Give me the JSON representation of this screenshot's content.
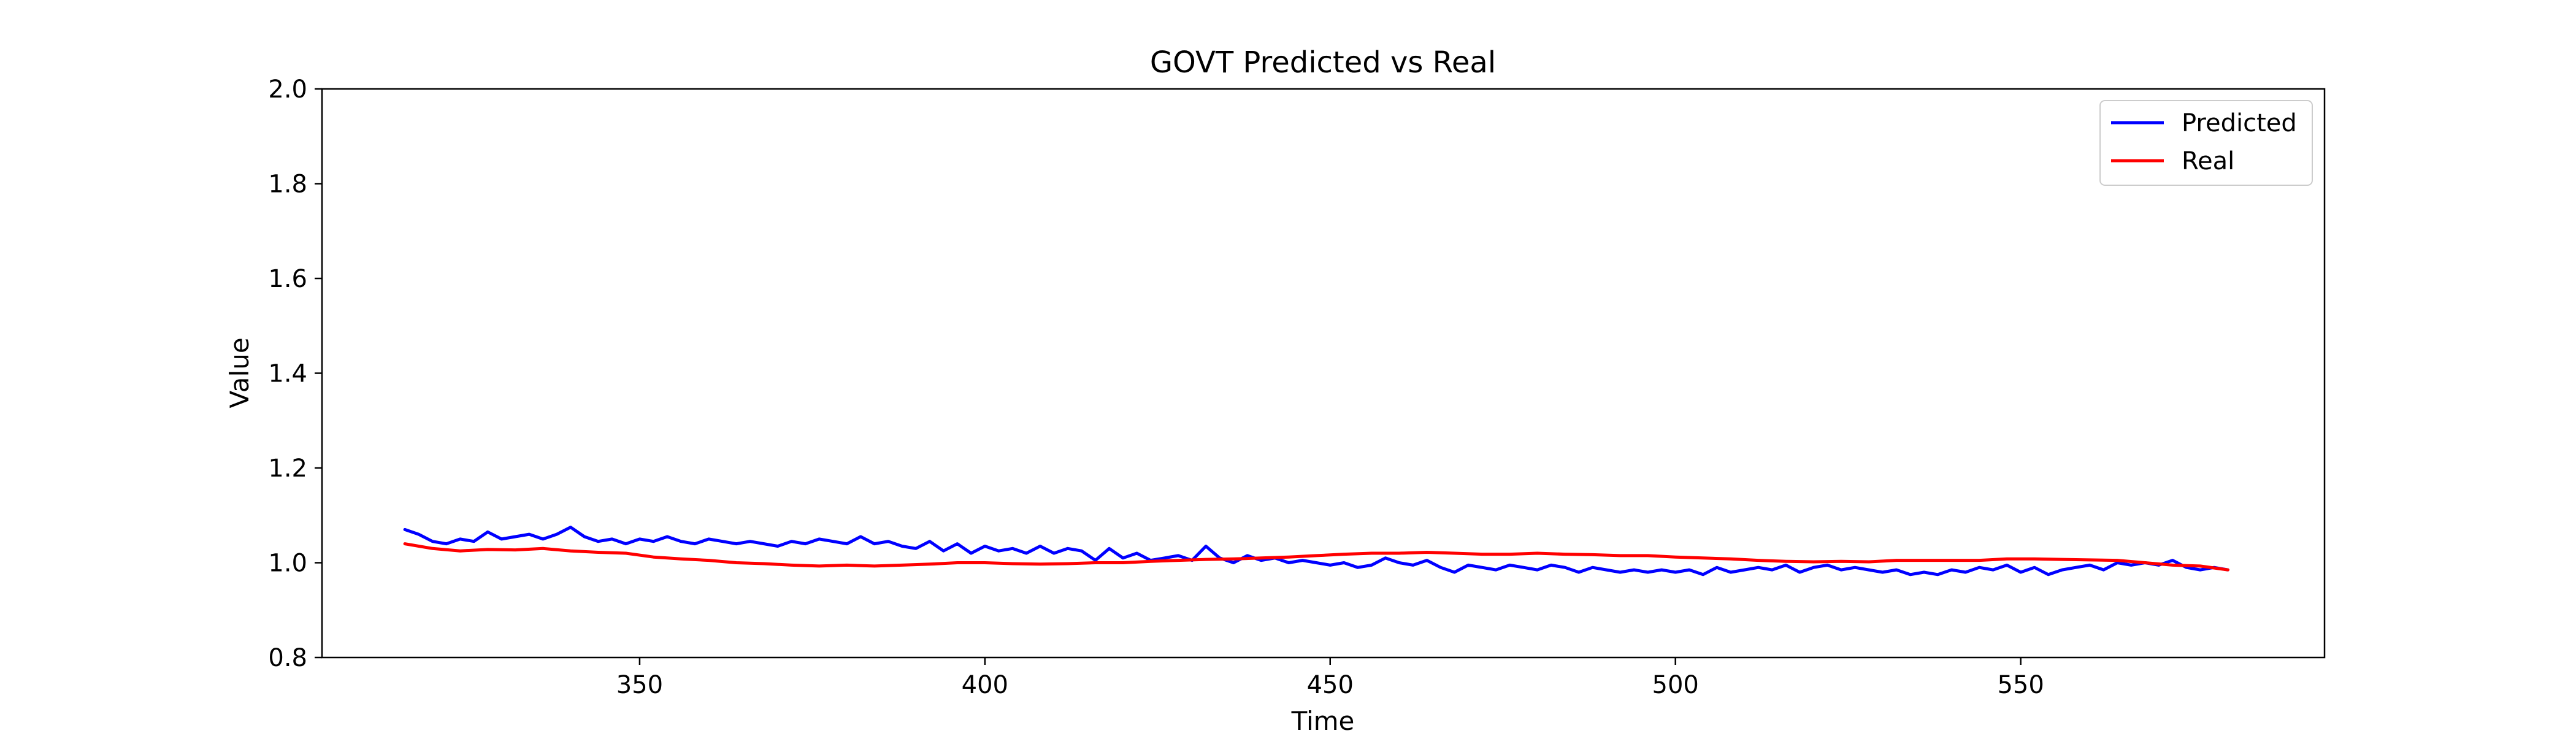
{
  "chart_data": {
    "type": "line",
    "title": "GOVT Predicted vs Real",
    "xlabel": "Time",
    "ylabel": "Value",
    "xlim": [
      304,
      594
    ],
    "ylim": [
      0.8,
      2.0
    ],
    "xticks": [
      350,
      400,
      450,
      500,
      550
    ],
    "yticks": [
      0.8,
      1.0,
      1.2,
      1.4,
      1.6,
      1.8,
      2.0
    ],
    "grid": false,
    "legend": "top-right",
    "series": [
      {
        "name": "Predicted",
        "color": "#0000ff",
        "x": [
          316,
          318,
          320,
          322,
          324,
          326,
          328,
          330,
          332,
          334,
          336,
          338,
          340,
          342,
          344,
          346,
          348,
          350,
          352,
          354,
          356,
          358,
          360,
          362,
          364,
          366,
          368,
          370,
          372,
          374,
          376,
          378,
          380,
          382,
          384,
          386,
          388,
          390,
          392,
          394,
          396,
          398,
          400,
          402,
          404,
          406,
          408,
          410,
          412,
          414,
          416,
          418,
          420,
          422,
          424,
          426,
          428,
          430,
          432,
          434,
          436,
          438,
          440,
          442,
          444,
          446,
          448,
          450,
          452,
          454,
          456,
          458,
          460,
          462,
          464,
          466,
          468,
          470,
          472,
          474,
          476,
          478,
          480,
          482,
          484,
          486,
          488,
          490,
          492,
          494,
          496,
          498,
          500,
          502,
          504,
          506,
          508,
          510,
          512,
          514,
          516,
          518,
          520,
          522,
          524,
          526,
          528,
          530,
          532,
          534,
          536,
          538,
          540,
          542,
          544,
          546,
          548,
          550,
          552,
          554,
          556,
          558,
          560,
          562,
          564,
          566,
          568,
          570,
          572,
          574,
          576,
          578,
          580
        ],
        "values": [
          1.07,
          1.06,
          1.045,
          1.04,
          1.05,
          1.045,
          1.065,
          1.05,
          1.055,
          1.06,
          1.05,
          1.06,
          1.075,
          1.055,
          1.045,
          1.05,
          1.04,
          1.05,
          1.045,
          1.055,
          1.045,
          1.04,
          1.05,
          1.045,
          1.04,
          1.045,
          1.04,
          1.035,
          1.045,
          1.04,
          1.05,
          1.045,
          1.04,
          1.055,
          1.04,
          1.045,
          1.035,
          1.03,
          1.045,
          1.025,
          1.04,
          1.02,
          1.035,
          1.025,
          1.03,
          1.02,
          1.035,
          1.02,
          1.03,
          1.025,
          1.005,
          1.03,
          1.01,
          1.02,
          1.005,
          1.01,
          1.015,
          1.005,
          1.035,
          1.01,
          1.0,
          1.015,
          1.005,
          1.01,
          1.0,
          1.005,
          1.0,
          0.995,
          1.0,
          0.99,
          0.995,
          1.01,
          1.0,
          0.995,
          1.005,
          0.99,
          0.98,
          0.995,
          0.99,
          0.985,
          0.995,
          0.99,
          0.985,
          0.995,
          0.99,
          0.98,
          0.99,
          0.985,
          0.98,
          0.985,
          0.98,
          0.985,
          0.98,
          0.985,
          0.975,
          0.99,
          0.98,
          0.985,
          0.99,
          0.985,
          0.995,
          0.98,
          0.99,
          0.995,
          0.985,
          0.99,
          0.985,
          0.98,
          0.985,
          0.975,
          0.98,
          0.975,
          0.985,
          0.98,
          0.99,
          0.985,
          0.995,
          0.98,
          0.99,
          0.975,
          0.985,
          0.99,
          0.995,
          0.985,
          1.0,
          0.995,
          1.0,
          0.995,
          1.005,
          0.99,
          0.985,
          0.99,
          0.985
        ]
      },
      {
        "name": "Real",
        "color": "#ff0000",
        "x": [
          316,
          320,
          324,
          328,
          332,
          336,
          340,
          344,
          348,
          352,
          356,
          360,
          364,
          368,
          372,
          376,
          380,
          384,
          388,
          392,
          396,
          400,
          404,
          408,
          412,
          416,
          420,
          424,
          428,
          432,
          436,
          440,
          444,
          448,
          452,
          456,
          460,
          464,
          468,
          472,
          476,
          480,
          484,
          488,
          492,
          496,
          500,
          504,
          508,
          512,
          516,
          520,
          524,
          528,
          532,
          536,
          540,
          544,
          548,
          552,
          556,
          560,
          564,
          568,
          572,
          576,
          580
        ],
        "values": [
          1.04,
          1.03,
          1.025,
          1.028,
          1.027,
          1.03,
          1.025,
          1.022,
          1.02,
          1.012,
          1.008,
          1.005,
          1.0,
          0.998,
          0.995,
          0.993,
          0.995,
          0.993,
          0.995,
          0.997,
          1.0,
          1.0,
          0.998,
          0.997,
          0.998,
          1.0,
          1.0,
          1.003,
          1.005,
          1.007,
          1.008,
          1.01,
          1.012,
          1.015,
          1.018,
          1.02,
          1.02,
          1.022,
          1.02,
          1.018,
          1.018,
          1.02,
          1.018,
          1.017,
          1.015,
          1.015,
          1.012,
          1.01,
          1.008,
          1.005,
          1.003,
          1.002,
          1.003,
          1.002,
          1.005,
          1.005,
          1.005,
          1.005,
          1.008,
          1.008,
          1.007,
          1.006,
          1.005,
          1.0,
          0.995,
          0.993,
          0.985
        ]
      }
    ]
  }
}
